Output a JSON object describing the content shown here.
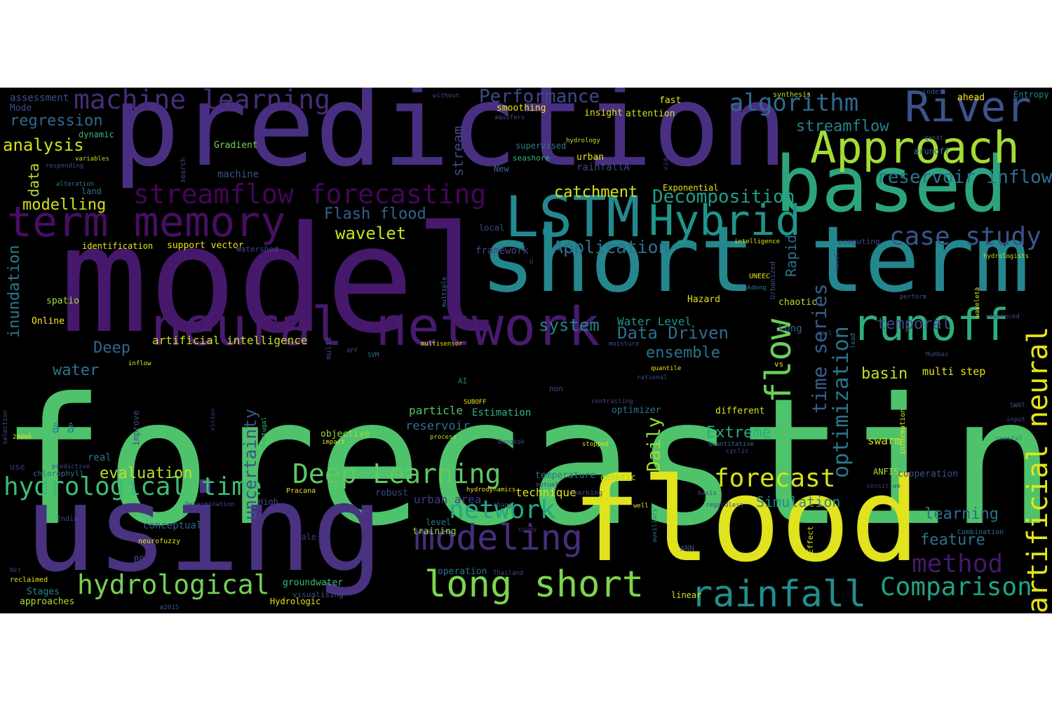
{
  "background": "#000000",
  "page_background": "#ffffff",
  "palette": [
    "#440154",
    "#482878",
    "#3e4989",
    "#31688e",
    "#26828e",
    "#1f9e89",
    "#35b779",
    "#6ece58",
    "#b5de2b",
    "#fde725"
  ],
  "words": [
    {
      "text": "forecasting",
      "color": "#4ec36b"
    },
    {
      "text": "model",
      "color": "#46186b"
    },
    {
      "text": "prediction",
      "color": "#482f81"
    },
    {
      "text": "using",
      "color": "#49327f"
    },
    {
      "text": "flood",
      "color": "#e0e31e"
    },
    {
      "text": "short term",
      "color": "#24878d"
    },
    {
      "text": "based",
      "color": "#2ca57f"
    },
    {
      "text": "neural network",
      "color": "#481a6c"
    },
    {
      "text": "LSTM",
      "color": "#23898e"
    },
    {
      "text": "Hybrid",
      "color": "#1f958b"
    },
    {
      "text": "runoff",
      "color": "#2fae7b"
    },
    {
      "text": "term memory",
      "color": "#470e61"
    },
    {
      "text": "Approach",
      "color": "#a5db36"
    },
    {
      "text": "River",
      "color": "#3b528b"
    },
    {
      "text": "long short",
      "color": "#7ed34f"
    },
    {
      "text": "rainfall",
      "color": "#218e8d"
    },
    {
      "text": "modeling",
      "color": "#472d7b"
    },
    {
      "text": "machine learning",
      "color": "#472c7a"
    },
    {
      "text": "streamflow forecasting",
      "color": "#450559"
    },
    {
      "text": "Deep Learning",
      "color": "#5ec962"
    },
    {
      "text": "Comparison",
      "color": "#20a386"
    },
    {
      "text": "hydrological",
      "color": "#75d054"
    },
    {
      "text": "hydrological time",
      "color": "#3cbc74"
    },
    {
      "text": "case study",
      "color": "#39568c"
    },
    {
      "text": "algorithm",
      "color": "#31688e"
    },
    {
      "text": "method",
      "color": "#481769"
    },
    {
      "text": "forecast",
      "color": "#d5e21a"
    },
    {
      "text": "network",
      "color": "#22a785"
    },
    {
      "text": "flow",
      "color": "#6ccd5a"
    },
    {
      "text": "artificial neural",
      "color": "#e5e419"
    },
    {
      "text": "time series",
      "color": "#355f8d"
    },
    {
      "text": "optimization",
      "color": "#2a768e"
    },
    {
      "text": "Decomposition",
      "color": "#1fa088"
    },
    {
      "text": "Performance",
      "color": "#3e4989"
    },
    {
      "text": "reservoir inflow",
      "color": "#2c728e"
    },
    {
      "text": "streamflow",
      "color": "#26818e"
    },
    {
      "text": "uncertainty",
      "color": "#3b528b"
    },
    {
      "text": "Daily",
      "color": "#a2da37"
    },
    {
      "text": "Application",
      "color": "#2d708e"
    },
    {
      "text": "Flash flood",
      "color": "#34618d"
    },
    {
      "text": "wavelet",
      "color": "#c8e020"
    },
    {
      "text": "catchment",
      "color": "#d8e219"
    },
    {
      "text": "Data Driven",
      "color": "#2e6e8e"
    },
    {
      "text": "system",
      "color": "#25838e"
    },
    {
      "text": "temporal",
      "color": "#404688"
    },
    {
      "text": "regression",
      "color": "#31688e"
    },
    {
      "text": "analysis",
      "color": "#d2e21b"
    },
    {
      "text": "modelling",
      "color": "#d0e11c"
    },
    {
      "text": "inundation",
      "color": "#2a788e"
    },
    {
      "text": "Extreme",
      "color": "#25ac82"
    },
    {
      "text": "Simulation",
      "color": "#238a8d"
    },
    {
      "text": "evaluation",
      "color": "#bddf26"
    },
    {
      "text": "ensemble",
      "color": "#2c728e"
    },
    {
      "text": "feature",
      "color": "#2d708e"
    },
    {
      "text": "learning",
      "color": "#2d708e"
    },
    {
      "text": "basin",
      "color": "#c2df23"
    },
    {
      "text": "Rapid",
      "color": "#2e6f8e"
    },
    {
      "text": "stream",
      "color": "#3f4788"
    },
    {
      "text": "water",
      "color": "#2b758e"
    },
    {
      "text": "data",
      "color": "#b2dd2d"
    },
    {
      "text": "Deep",
      "color": "#32658e"
    },
    {
      "text": "artificial intelligence",
      "color": "#c5e021"
    },
    {
      "text": "multi step",
      "color": "#e2e418"
    },
    {
      "text": "swarm",
      "color": "#c8e020"
    },
    {
      "text": "Water Level",
      "color": "#1f958b"
    },
    {
      "text": "reservoir",
      "color": "#2c728e"
    },
    {
      "text": "particle",
      "color": "#56c667"
    },
    {
      "text": "urban area",
      "color": "#443a83"
    },
    {
      "text": "technique",
      "color": "#d8e219"
    },
    {
      "text": "conceptual",
      "color": "#34608d"
    },
    {
      "text": "groundwater",
      "color": "#3dbc74"
    },
    {
      "text": "support vector",
      "color": "#e7e419"
    },
    {
      "text": "Online",
      "color": "#fde725"
    },
    {
      "text": "identification",
      "color": "#e2e418"
    },
    {
      "text": "spatio",
      "color": "#a5db36"
    },
    {
      "text": "objective",
      "color": "#9bd93c"
    },
    {
      "text": "optimizer",
      "color": "#2a788e"
    },
    {
      "text": "Exponential",
      "color": "#e5e419"
    },
    {
      "text": "â â",
      "color": "#27808e"
    },
    {
      "text": "real",
      "color": "#2c728e"
    },
    {
      "text": "Stages",
      "color": "#25848e"
    },
    {
      "text": "approaches",
      "color": "#b2dd2d"
    },
    {
      "text": "chaotic",
      "color": "#b5de2b"
    },
    {
      "text": "Hazard",
      "color": "#dde318"
    },
    {
      "text": "Long",
      "color": "#32658e"
    },
    {
      "text": "cooperation",
      "color": "#3b528b"
    },
    {
      "text": "genetic",
      "color": "#a8db34"
    },
    {
      "text": "temperature",
      "color": "#2c728e"
    },
    {
      "text": "ANFIS",
      "color": "#a8db34"
    },
    {
      "text": "Estimation",
      "color": "#2fb47c"
    },
    {
      "text": "framework",
      "color": "#404688"
    },
    {
      "text": "machine",
      "color": "#3b528b"
    },
    {
      "text": "fast",
      "color": "#e5e419"
    },
    {
      "text": "insight",
      "color": "#e2e418"
    },
    {
      "text": "attention",
      "color": "#d0e11c"
    },
    {
      "text": "smoothing",
      "color": "#e5e419"
    },
    {
      "text": "assessment",
      "color": "#3b528b"
    },
    {
      "text": "Mode",
      "color": "#3e4989"
    },
    {
      "text": "dynamic",
      "color": "#35b779"
    },
    {
      "text": "Gradient",
      "color": "#7ad151"
    },
    {
      "text": "land",
      "color": "#2c728e"
    },
    {
      "text": "training",
      "color": "#90d743"
    },
    {
      "text": "operation",
      "color": "#2c728e"
    },
    {
      "text": "robust",
      "color": "#3e4989"
    },
    {
      "text": "level",
      "color": "#2c728e"
    },
    {
      "text": "different",
      "color": "#d8e219"
    },
    {
      "text": "linear",
      "color": "#d8e219"
    },
    {
      "text": "Hydrologic",
      "color": "#e5e419"
    },
    {
      "text": "BP",
      "color": "#3e4989"
    },
    {
      "text": "urban",
      "color": "#e2e418"
    },
    {
      "text": "rainfallÃ",
      "color": "#404688"
    },
    {
      "text": "New",
      "color": "#31688e"
    },
    {
      "text": "seashore",
      "color": "#35b779"
    },
    {
      "text": "supervised",
      "color": "#2a788e"
    },
    {
      "text": "hydrology",
      "color": "#c2df23"
    },
    {
      "text": "aquifers",
      "color": "#3b528b"
    },
    {
      "text": "local",
      "color": "#3e4989"
    },
    {
      "text": "computing",
      "color": "#3e4989"
    },
    {
      "text": "ahead",
      "color": "#fde725"
    },
    {
      "text": "Entropy",
      "color": "#26828e"
    },
    {
      "text": "index",
      "color": "#3b528b"
    },
    {
      "text": "synthesis",
      "color": "#c2df23"
    },
    {
      "text": "without",
      "color": "#3e4989"
    },
    {
      "text": "qanat",
      "color": "#3e4989"
    },
    {
      "text": "ærunoff",
      "color": "#2c728e"
    },
    {
      "text": "search",
      "color": "#3e4989"
    },
    {
      "text": "via",
      "color": "#46337e"
    },
    {
      "text": "intelligence",
      "color": "#e2e418"
    },
    {
      "text": "hydrologists",
      "color": "#bddf26"
    },
    {
      "text": "perform",
      "color": "#3b528b"
    },
    {
      "text": "UNEEC",
      "color": "#e2e418"
    },
    {
      "text": "Urbanized",
      "color": "#3b528b"
    },
    {
      "text": "Nakdong",
      "color": "#2a788e"
    },
    {
      "text": "soil",
      "color": "#3e4989"
    },
    {
      "text": "moisture",
      "color": "#3b528b"
    },
    {
      "text": "multisensor",
      "color": "#e2e418"
    },
    {
      "text": "multi",
      "color": "#3e4989"
    },
    {
      "text": "inflow",
      "color": "#e2e418"
    },
    {
      "text": "AFF",
      "color": "#3e4989"
    },
    {
      "text": "SVM",
      "color": "#2c728e"
    },
    {
      "text": "AI",
      "color": "#2c728e"
    },
    {
      "text": "non",
      "color": "#3e4989"
    },
    {
      "text": "quantile",
      "color": "#e2e418"
    },
    {
      "text": "rational",
      "color": "#3b528b"
    },
    {
      "text": "contrasting",
      "color": "#3e4989"
    },
    {
      "text": "SUBOFF",
      "color": "#e2e418"
    },
    {
      "text": "process",
      "color": "#c2df23"
    },
    {
      "text": "impact",
      "color": "#e2e418"
    },
    {
      "text": "Bangkok",
      "color": "#3e4989"
    },
    {
      "text": "stopped",
      "color": "#e2e418"
    },
    {
      "text": "Quantitative",
      "color": "#2c728e"
    },
    {
      "text": "cyclic",
      "color": "#3e4989"
    },
    {
      "text": "input",
      "color": "#3e4989"
    },
    {
      "text": "SWAT",
      "color": "#3b528b"
    },
    {
      "text": "coastal",
      "color": "#26828e"
    },
    {
      "text": "information",
      "color": "#e2e418"
    },
    {
      "text": "lead",
      "color": "#2a788e"
    },
    {
      "text": "sequenced",
      "color": "#3b528b"
    },
    {
      "text": "waveletà",
      "color": "#e2e418"
    },
    {
      "text": "novel",
      "color": "#3e4989"
    },
    {
      "text": "Mumbai",
      "color": "#3e4989"
    },
    {
      "text": "variables",
      "color": "#c2df23"
    },
    {
      "text": "responding",
      "color": "#3b528b"
    },
    {
      "text": "alteration",
      "color": "#2a788e"
    },
    {
      "text": "U",
      "color": "#3e4989"
    },
    {
      "text": "Watershed",
      "color": "#3e4989"
    },
    {
      "text": "multiple",
      "color": "#2c728e"
    },
    {
      "text": "vs",
      "color": "#e2e418"
    },
    {
      "text": "improve",
      "color": "#3b528b"
    },
    {
      "text": "xixian",
      "color": "#46337e"
    },
    {
      "text": "Portugal",
      "color": "#35b779"
    },
    {
      "text": "predictive",
      "color": "#3e4989"
    },
    {
      "text": "2000Ã",
      "color": "#e2e418"
    },
    {
      "text": "selection",
      "color": "#3b528b"
    },
    {
      "text": "use",
      "color": "#46337e"
    },
    {
      "text": "chlorophyll",
      "color": "#2c728e"
    },
    {
      "text": "High",
      "color": "#3e4989"
    },
    {
      "text": "Pracana",
      "color": "#e2e418"
    },
    {
      "text": "Determination",
      "color": "#3e4989"
    },
    {
      "text": "India",
      "color": "#3e4989"
    },
    {
      "text": "neurofuzzy",
      "color": "#e2e418"
    },
    {
      "text": "scale",
      "color": "#46337e"
    },
    {
      "text": "mutual",
      "color": "#3e4989"
    },
    {
      "text": "warning",
      "color": "#3e4989"
    },
    {
      "text": "hydrodynamics",
      "color": "#e2e418"
    },
    {
      "text": "change",
      "color": "#3e4989"
    },
    {
      "text": "regardless",
      "color": "#3e4989"
    },
    {
      "text": "well",
      "color": "#e2e418"
    },
    {
      "text": "basis",
      "color": "#3e4989"
    },
    {
      "text": "sensitive",
      "color": "#46337e"
    },
    {
      "text": "auxiliary",
      "color": "#2a788e"
    },
    {
      "text": "Effect",
      "color": "#e2e418"
    },
    {
      "text": "Combination",
      "color": "#2c728e"
    },
    {
      "text": "study",
      "color": "#46337e"
    },
    {
      "text": "ANN",
      "color": "#3e4989"
    },
    {
      "text": "Net",
      "color": "#46337e"
    },
    {
      "text": "reclaimed",
      "color": "#e2e418"
    },
    {
      "text": "visualising",
      "color": "#3b528b"
    },
    {
      "text": "Thailand",
      "color": "#3e4989"
    },
    {
      "text": "œ2015",
      "color": "#3b528b"
    }
  ]
}
